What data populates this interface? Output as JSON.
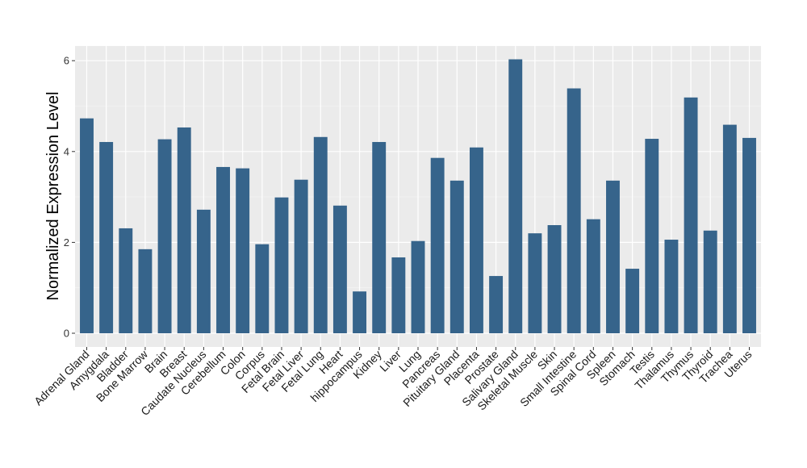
{
  "chart_data": {
    "type": "bar",
    "title": "",
    "xlabel": "",
    "ylabel": "Normalized Expression Level",
    "ylim": [
      -0.3,
      6.3
    ],
    "yticks": [
      0,
      2,
      4,
      6
    ],
    "grid": true,
    "bar_color": "#36648B",
    "panel_color": "#EBEBEB",
    "categories": [
      "Adrenal Gland",
      "Amygdala",
      "Bladder",
      "Bone Marrow",
      "Brain",
      "Breast",
      "Caudate Nucleus",
      "Cerebellum",
      "Colon",
      "Corpus",
      "Fetal Brain",
      "Fetal Liver",
      "Fetal Lung",
      "Heart",
      "hippocampus",
      "Kidney",
      "Liver",
      "Lung",
      "Pancreas",
      "Pituitary Gland",
      "Placenta",
      "Prostate",
      "Salivary Gland",
      "Skeletal Muscle",
      "Skin",
      "Small Intestine",
      "Spinal Cord",
      "Spleen",
      "Stomach",
      "Testis",
      "Thalamus",
      "Thymus",
      "Thyroid",
      "Trachea",
      "Uterus"
    ],
    "values": [
      4.73,
      4.21,
      2.31,
      1.85,
      4.27,
      4.53,
      2.72,
      3.66,
      3.63,
      1.96,
      2.99,
      3.38,
      4.32,
      2.81,
      0.92,
      4.21,
      1.67,
      2.03,
      3.86,
      3.36,
      4.09,
      1.26,
      6.03,
      2.2,
      2.38,
      5.39,
      2.51,
      3.36,
      1.42,
      4.28,
      2.06,
      5.19,
      2.26,
      4.59,
      4.3
    ]
  }
}
